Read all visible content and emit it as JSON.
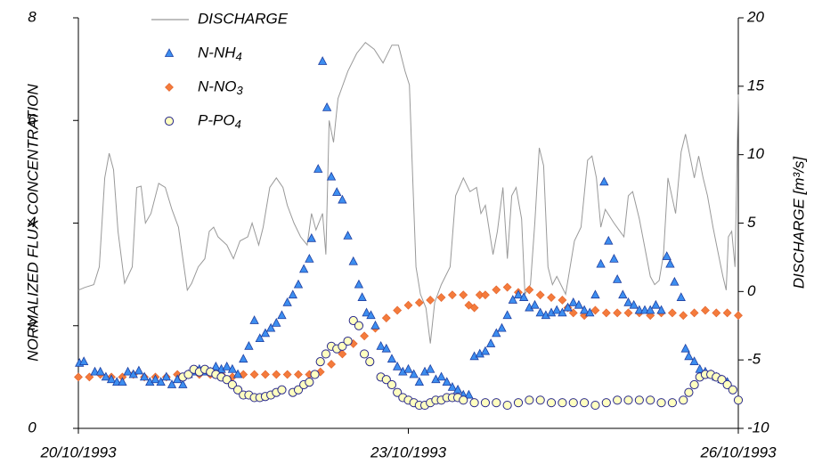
{
  "chart_data": {
    "type": "scatter",
    "ylabel": "NORMALIZED FLUX CONCENTRATION",
    "y2label": "DISCHARGE  [m³/s]",
    "xlim": [
      0,
      6
    ],
    "xticks": [
      {
        "value": 0,
        "label": "20/10/1993"
      },
      {
        "value": 3,
        "label": "23/10/1993"
      },
      {
        "value": 6,
        "label": "26/10/1993"
      }
    ],
    "ylim": [
      0,
      8
    ],
    "yticks": [
      0,
      2,
      4,
      6,
      8
    ],
    "y2lim": [
      -10,
      20
    ],
    "y2ticks": [
      -10,
      -5,
      0,
      5,
      10,
      15,
      20
    ],
    "grid": false,
    "legend": "top-left",
    "series": [
      {
        "name": "DISCHARGE",
        "mark": "line",
        "axis": "y2",
        "color": "#999999",
        "x": [
          0.0,
          0.06,
          0.14,
          0.19,
          0.24,
          0.28,
          0.32,
          0.36,
          0.42,
          0.49,
          0.53,
          0.57,
          0.61,
          0.66,
          0.73,
          0.79,
          0.85,
          0.91,
          0.95,
          0.99,
          1.03,
          1.09,
          1.15,
          1.19,
          1.23,
          1.27,
          1.35,
          1.41,
          1.47,
          1.54,
          1.58,
          1.64,
          1.68,
          1.74,
          1.8,
          1.86,
          1.9,
          1.96,
          2.02,
          2.08,
          2.12,
          2.16,
          2.22,
          2.25,
          2.28,
          2.32,
          2.36,
          2.45,
          2.53,
          2.61,
          2.69,
          2.77,
          2.85,
          2.91,
          2.97,
          3.01,
          3.04,
          3.07,
          3.11,
          3.16,
          3.2,
          3.24,
          3.3,
          3.38,
          3.43,
          3.5,
          3.56,
          3.62,
          3.66,
          3.7,
          3.77,
          3.81,
          3.86,
          3.9,
          3.94,
          3.98,
          4.03,
          4.06,
          4.11,
          4.15,
          4.19,
          4.23,
          4.27,
          4.31,
          4.35,
          4.43,
          4.51,
          4.57,
          4.63,
          4.67,
          4.71,
          4.75,
          4.79,
          4.87,
          4.96,
          5.0,
          5.04,
          5.1,
          5.2,
          5.24,
          5.28,
          5.32,
          5.36,
          5.43,
          5.48,
          5.52,
          5.56,
          5.6,
          5.64,
          5.68,
          5.72,
          5.77,
          5.81,
          5.86,
          5.89,
          5.91,
          5.94,
          5.97,
          6.0
        ],
        "values": [
          0.1,
          0.3,
          0.5,
          1.8,
          8.3,
          10.1,
          8.9,
          4.4,
          0.6,
          1.8,
          7.6,
          7.7,
          5.0,
          5.7,
          7.9,
          7.6,
          6.0,
          4.7,
          2.4,
          0.1,
          0.6,
          1.8,
          2.4,
          4.4,
          4.7,
          4.0,
          3.4,
          2.4,
          3.7,
          4.0,
          5.0,
          3.4,
          4.7,
          7.6,
          8.3,
          7.6,
          6.3,
          5.0,
          4.0,
          3.4,
          5.7,
          4.5,
          5.7,
          2.7,
          12.5,
          10.9,
          14.1,
          16.1,
          17.4,
          18.2,
          17.7,
          16.7,
          18.0,
          18.0,
          16.1,
          15.1,
          8.3,
          1.8,
          -0.2,
          -1.2,
          -3.8,
          -0.8,
          0.5,
          1.8,
          7.0,
          8.3,
          7.3,
          7.6,
          5.7,
          6.3,
          2.7,
          4.4,
          7.6,
          2.4,
          7.0,
          7.6,
          5.3,
          -0.2,
          0.5,
          5.0,
          10.5,
          9.2,
          1.8,
          0.5,
          1.1,
          -0.2,
          3.7,
          4.7,
          9.6,
          9.9,
          8.3,
          4.7,
          6.0,
          5.0,
          4.0,
          7.0,
          7.3,
          5.3,
          1.1,
          0.5,
          0.8,
          2.7,
          8.3,
          5.7,
          10.2,
          11.5,
          9.9,
          8.3,
          9.9,
          8.3,
          7.0,
          4.7,
          3.1,
          1.1,
          0.1,
          4.0,
          4.4,
          1.8,
          14.4
        ]
      },
      {
        "name": "N-NH4",
        "mark": "triangle",
        "color": "#3d8ef0",
        "x": [
          0.01,
          0.05,
          0.15,
          0.2,
          0.25,
          0.3,
          0.35,
          0.4,
          0.45,
          0.5,
          0.55,
          0.6,
          0.65,
          0.7,
          0.75,
          0.8,
          0.85,
          0.9,
          0.95,
          1.0,
          1.05,
          1.1,
          1.15,
          1.2,
          1.25,
          1.3,
          1.35,
          1.4,
          1.45,
          1.5,
          1.55,
          1.6,
          1.65,
          1.7,
          1.75,
          1.8,
          1.85,
          1.9,
          1.95,
          2.0,
          2.05,
          2.1,
          2.12,
          2.18,
          2.22,
          2.26,
          2.3,
          2.35,
          2.4,
          2.45,
          2.5,
          2.55,
          2.58,
          2.62,
          2.66,
          2.7,
          2.75,
          2.8,
          2.85,
          2.9,
          2.95,
          3.0,
          3.05,
          3.1,
          3.15,
          3.2,
          3.25,
          3.3,
          3.35,
          3.4,
          3.45,
          3.5,
          3.55,
          3.6,
          3.65,
          3.7,
          3.75,
          3.8,
          3.85,
          3.9,
          3.95,
          4.0,
          4.05,
          4.1,
          4.15,
          4.2,
          4.25,
          4.3,
          4.35,
          4.4,
          4.45,
          4.5,
          4.55,
          4.6,
          4.65,
          4.7,
          4.75,
          4.78,
          4.82,
          4.87,
          4.9,
          4.95,
          5.0,
          5.05,
          5.1,
          5.15,
          5.2,
          5.25,
          5.3,
          5.35,
          5.38,
          5.42,
          5.48,
          5.52,
          5.55,
          5.6,
          5.65,
          5.7,
          5.75,
          5.8,
          5.85,
          5.9
        ],
        "values": [
          1.27,
          1.3,
          1.1,
          1.1,
          1.0,
          0.95,
          0.9,
          0.9,
          1.1,
          1.05,
          1.12,
          1.0,
          0.9,
          0.95,
          0.9,
          1.0,
          0.85,
          0.95,
          0.85,
          1.05,
          1.1,
          1.15,
          1.1,
          1.1,
          1.2,
          1.15,
          1.2,
          1.15,
          1.05,
          1.35,
          1.6,
          2.1,
          1.75,
          1.85,
          1.95,
          2.05,
          2.2,
          2.45,
          2.6,
          2.8,
          3.1,
          3.3,
          3.7,
          5.05,
          7.15,
          6.25,
          4.9,
          4.6,
          4.45,
          3.75,
          3.25,
          2.8,
          2.55,
          2.25,
          2.2,
          2.0,
          1.6,
          1.55,
          1.35,
          1.2,
          1.1,
          1.15,
          1.05,
          0.9,
          1.1,
          1.15,
          0.95,
          1.0,
          0.9,
          0.8,
          0.75,
          0.65,
          0.65,
          1.4,
          1.45,
          1.5,
          1.65,
          1.85,
          1.95,
          2.2,
          2.5,
          2.6,
          2.55,
          2.35,
          2.4,
          2.25,
          2.2,
          2.25,
          2.3,
          2.25,
          2.35,
          2.45,
          2.4,
          2.3,
          2.25,
          2.6,
          3.2,
          4.8,
          3.65,
          3.3,
          2.9,
          2.6,
          2.45,
          2.4,
          2.3,
          2.3,
          2.3,
          2.4,
          2.3,
          3.35,
          3.2,
          2.85,
          2.55,
          1.55,
          1.4,
          1.3,
          1.15,
          1.1,
          1.05,
          1.0,
          0.95,
          0.9
        ]
      },
      {
        "name": "N-NO3",
        "mark": "diamond",
        "color": "#f47b3c",
        "x": [
          0.0,
          0.1,
          0.2,
          0.3,
          0.4,
          0.5,
          0.6,
          0.7,
          0.8,
          0.9,
          1.0,
          1.1,
          1.2,
          1.3,
          1.4,
          1.5,
          1.6,
          1.7,
          1.8,
          1.9,
          2.0,
          2.1,
          2.15,
          2.2,
          2.3,
          2.4,
          2.5,
          2.6,
          2.7,
          2.8,
          2.9,
          3.0,
          3.1,
          3.2,
          3.3,
          3.4,
          3.5,
          3.55,
          3.6,
          3.65,
          3.7,
          3.8,
          3.9,
          4.0,
          4.1,
          4.2,
          4.3,
          4.4,
          4.45,
          4.5,
          4.6,
          4.7,
          4.8,
          4.9,
          5.0,
          5.1,
          5.2,
          5.3,
          5.4,
          5.5,
          5.6,
          5.7,
          5.8,
          5.9,
          6.0
        ],
        "values": [
          1.0,
          1.0,
          1.05,
          1.0,
          1.0,
          1.05,
          1.0,
          1.0,
          1.0,
          1.05,
          1.05,
          1.05,
          1.05,
          1.05,
          1.0,
          1.05,
          1.05,
          1.05,
          1.05,
          1.05,
          1.05,
          1.05,
          1.05,
          1.1,
          1.25,
          1.45,
          1.65,
          1.8,
          1.95,
          2.15,
          2.3,
          2.4,
          2.45,
          2.5,
          2.55,
          2.6,
          2.6,
          2.4,
          2.35,
          2.6,
          2.6,
          2.7,
          2.75,
          2.65,
          2.7,
          2.6,
          2.55,
          2.5,
          2.35,
          2.25,
          2.2,
          2.3,
          2.25,
          2.25,
          2.25,
          2.25,
          2.2,
          2.25,
          2.25,
          2.2,
          2.25,
          2.3,
          2.25,
          2.25,
          2.2
        ]
      },
      {
        "name": "P-PO4",
        "mark": "circle",
        "color": "#ffffc0",
        "x": [
          0.95,
          1.0,
          1.05,
          1.1,
          1.15,
          1.2,
          1.25,
          1.3,
          1.35,
          1.4,
          1.45,
          1.5,
          1.55,
          1.6,
          1.65,
          1.7,
          1.75,
          1.8,
          1.85,
          1.95,
          2.0,
          2.05,
          2.1,
          2.15,
          2.2,
          2.25,
          2.3,
          2.35,
          2.4,
          2.45,
          2.5,
          2.55,
          2.6,
          2.65,
          2.75,
          2.8,
          2.85,
          2.9,
          2.95,
          3.0,
          3.05,
          3.1,
          3.15,
          3.2,
          3.25,
          3.3,
          3.35,
          3.4,
          3.45,
          3.5,
          3.6,
          3.7,
          3.8,
          3.9,
          4.0,
          4.1,
          4.2,
          4.3,
          4.4,
          4.5,
          4.6,
          4.7,
          4.8,
          4.9,
          5.0,
          5.1,
          5.2,
          5.3,
          5.4,
          5.5,
          5.55,
          5.6,
          5.65,
          5.7,
          5.75,
          5.8,
          5.85,
          5.9,
          5.95,
          6.0
        ],
        "values": [
          1.0,
          1.05,
          1.15,
          1.1,
          1.15,
          1.1,
          1.05,
          1.0,
          0.95,
          0.85,
          0.75,
          0.65,
          0.65,
          0.6,
          0.6,
          0.62,
          0.65,
          0.7,
          0.75,
          0.7,
          0.75,
          0.85,
          0.9,
          1.05,
          1.3,
          1.45,
          1.6,
          1.55,
          1.6,
          1.7,
          2.1,
          2.0,
          1.45,
          1.3,
          1.0,
          0.95,
          0.85,
          0.7,
          0.6,
          0.55,
          0.5,
          0.45,
          0.45,
          0.5,
          0.55,
          0.55,
          0.6,
          0.6,
          0.6,
          0.55,
          0.5,
          0.5,
          0.5,
          0.45,
          0.5,
          0.55,
          0.55,
          0.5,
          0.5,
          0.5,
          0.5,
          0.45,
          0.5,
          0.55,
          0.55,
          0.55,
          0.55,
          0.5,
          0.5,
          0.55,
          0.7,
          0.85,
          1.0,
          1.05,
          1.05,
          1.0,
          0.95,
          0.85,
          0.75,
          0.55
        ]
      }
    ]
  }
}
